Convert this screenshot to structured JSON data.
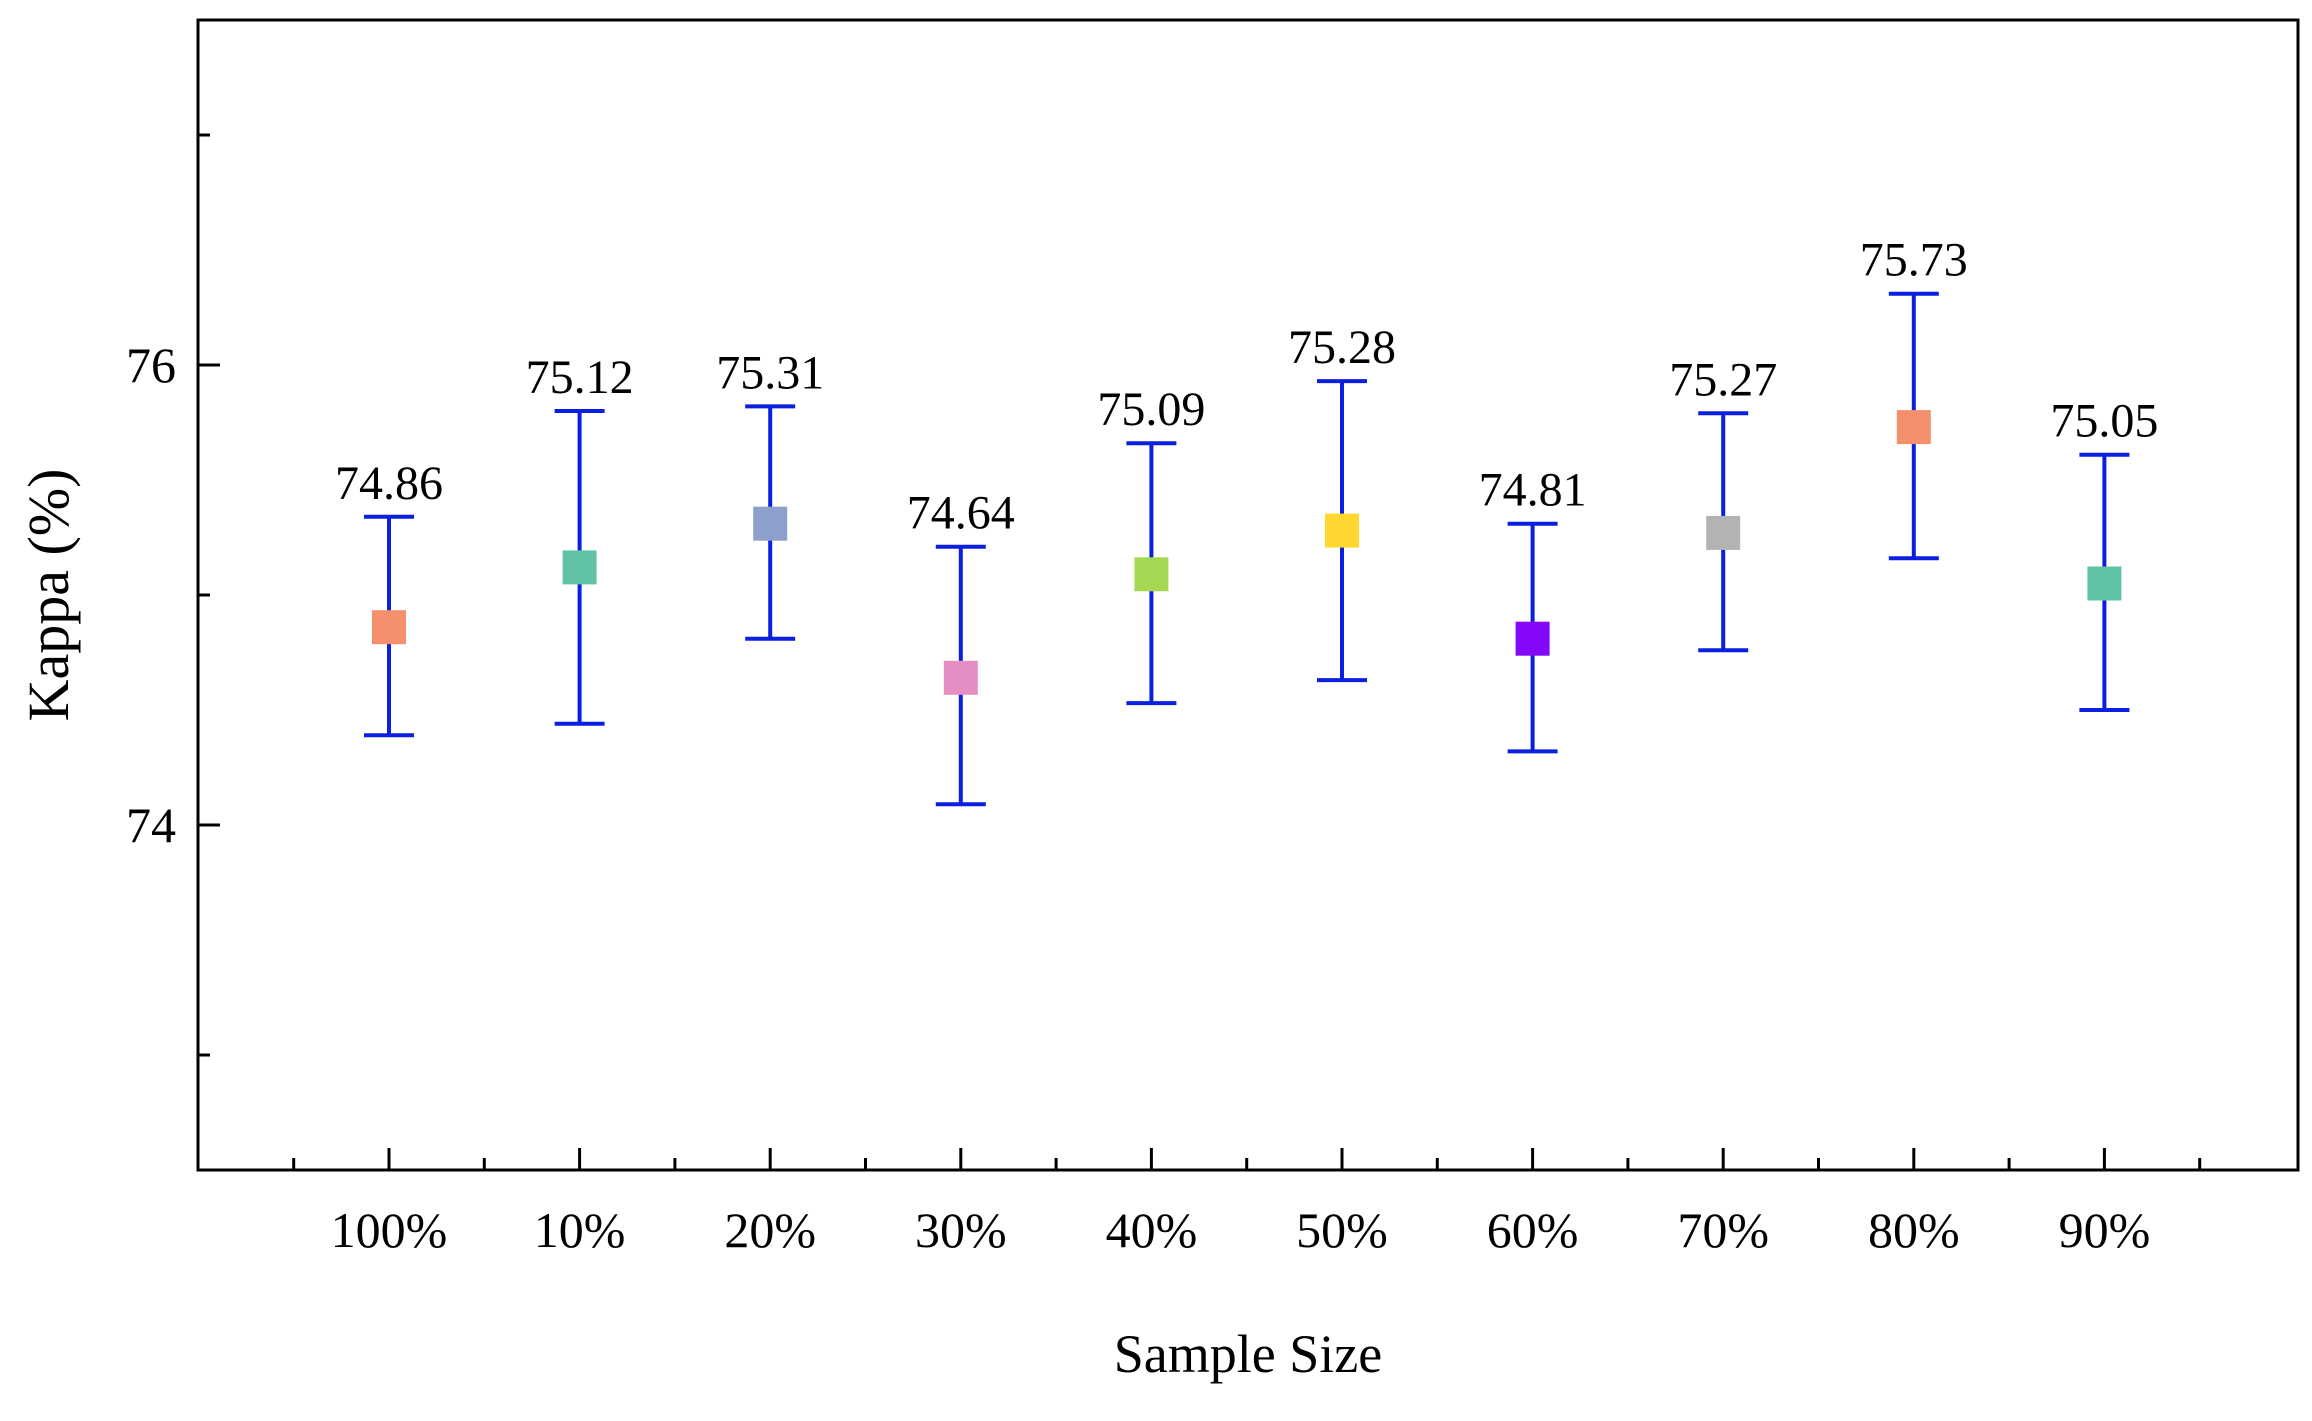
{
  "chart_data": {
    "type": "scatter",
    "subtype": "error-bar",
    "title": "",
    "xlabel": "Sample Size",
    "ylabel": "Kappa (%)",
    "ylim": [
      72.5,
      77.5
    ],
    "yticks_major": [
      74,
      76
    ],
    "yticks_minor": [
      73,
      75,
      77
    ],
    "categories": [
      "100%",
      "10%",
      "20%",
      "30%",
      "40%",
      "50%",
      "60%",
      "70%",
      "80%",
      "90%"
    ],
    "values": [
      74.86,
      75.12,
      75.31,
      74.64,
      75.09,
      75.28,
      74.81,
      75.27,
      75.73,
      75.05
    ],
    "labels": [
      "74.86",
      "75.12",
      "75.31",
      "74.64",
      "75.09",
      "75.28",
      "74.81",
      "75.27",
      "75.73",
      "75.05"
    ],
    "error_upper": [
      75.34,
      75.8,
      75.82,
      75.21,
      75.66,
      75.93,
      75.31,
      75.79,
      76.31,
      75.61
    ],
    "error_lower": [
      74.39,
      74.44,
      74.81,
      74.09,
      74.53,
      74.63,
      74.32,
      74.76,
      75.16,
      74.5
    ],
    "marker_colors": [
      "#F4906B",
      "#62C2A6",
      "#8D9FCB",
      "#E48EC3",
      "#A6D752",
      "#FED831",
      "#8208F7",
      "#B3B3B3",
      "#F4906B",
      "#62C2A6"
    ],
    "error_bar_color": "#0B1FE0",
    "grid": false,
    "legend": "none"
  }
}
